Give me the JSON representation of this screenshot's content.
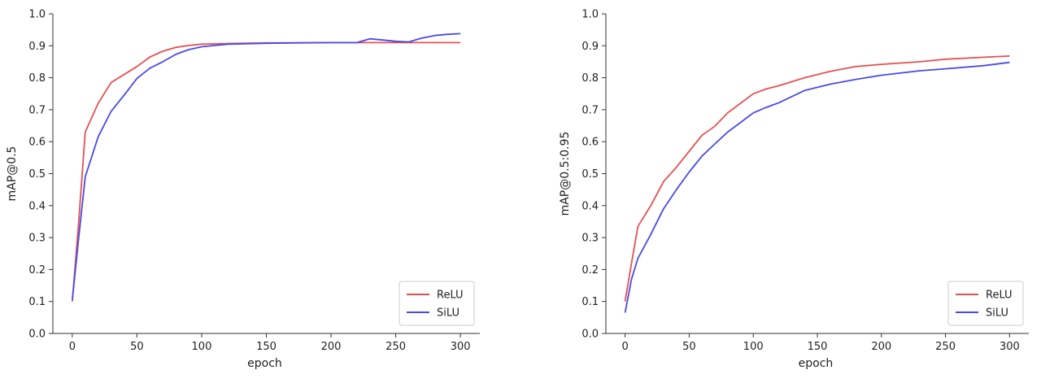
{
  "chart_data": [
    {
      "type": "line",
      "xlabel": "epoch",
      "ylabel": "mAP@0.5",
      "xlim": [
        -15,
        315
      ],
      "ylim": [
        0.0,
        1.0
      ],
      "xticks": [
        0,
        50,
        100,
        150,
        200,
        250,
        300
      ],
      "yticks": [
        0.0,
        0.1,
        0.2,
        0.3,
        0.4,
        0.5,
        0.6,
        0.7,
        0.8,
        0.9,
        1.0
      ],
      "legend_position": "bottom-right",
      "grid": false,
      "series": [
        {
          "name": "ReLU",
          "color": "#e85050",
          "x": [
            0,
            5,
            10,
            20,
            30,
            40,
            50,
            60,
            70,
            80,
            90,
            100,
            120,
            150,
            200,
            250,
            300
          ],
          "y": [
            0.1,
            0.35,
            0.63,
            0.72,
            0.785,
            0.81,
            0.835,
            0.865,
            0.883,
            0.895,
            0.901,
            0.905,
            0.907,
            0.909,
            0.91,
            0.91,
            0.91
          ]
        },
        {
          "name": "SiLU",
          "color": "#4a4ae8",
          "x": [
            0,
            5,
            10,
            20,
            30,
            40,
            50,
            60,
            70,
            80,
            90,
            100,
            120,
            150,
            200,
            220,
            230,
            240,
            250,
            260,
            270,
            280,
            290,
            300
          ],
          "y": [
            0.105,
            0.3,
            0.49,
            0.615,
            0.695,
            0.745,
            0.798,
            0.83,
            0.85,
            0.873,
            0.888,
            0.897,
            0.905,
            0.908,
            0.91,
            0.91,
            0.922,
            0.918,
            0.914,
            0.912,
            0.924,
            0.932,
            0.936,
            0.938
          ]
        }
      ]
    },
    {
      "type": "line",
      "xlabel": "epoch",
      "ylabel": "mAP@0.5:0.95",
      "xlim": [
        -15,
        315
      ],
      "ylim": [
        0.0,
        1.0
      ],
      "xticks": [
        0,
        50,
        100,
        150,
        200,
        250,
        300
      ],
      "yticks": [
        0.0,
        0.1,
        0.2,
        0.3,
        0.4,
        0.5,
        0.6,
        0.7,
        0.8,
        0.9,
        1.0
      ],
      "legend_position": "bottom-right",
      "grid": false,
      "series": [
        {
          "name": "ReLU",
          "color": "#e85050",
          "x": [
            0,
            5,
            10,
            20,
            30,
            40,
            50,
            60,
            70,
            80,
            90,
            100,
            110,
            120,
            140,
            160,
            180,
            200,
            230,
            250,
            280,
            300
          ],
          "y": [
            0.1,
            0.22,
            0.335,
            0.4,
            0.475,
            0.52,
            0.57,
            0.62,
            0.648,
            0.69,
            0.72,
            0.75,
            0.765,
            0.775,
            0.8,
            0.82,
            0.835,
            0.842,
            0.85,
            0.858,
            0.864,
            0.868
          ]
        },
        {
          "name": "SiLU",
          "color": "#4a4ae8",
          "x": [
            0,
            5,
            10,
            20,
            30,
            40,
            50,
            60,
            70,
            80,
            90,
            100,
            110,
            120,
            140,
            160,
            180,
            200,
            230,
            250,
            280,
            300
          ],
          "y": [
            0.065,
            0.17,
            0.235,
            0.31,
            0.39,
            0.45,
            0.505,
            0.555,
            0.593,
            0.63,
            0.66,
            0.69,
            0.707,
            0.722,
            0.76,
            0.78,
            0.795,
            0.808,
            0.822,
            0.828,
            0.838,
            0.848
          ]
        }
      ]
    }
  ]
}
